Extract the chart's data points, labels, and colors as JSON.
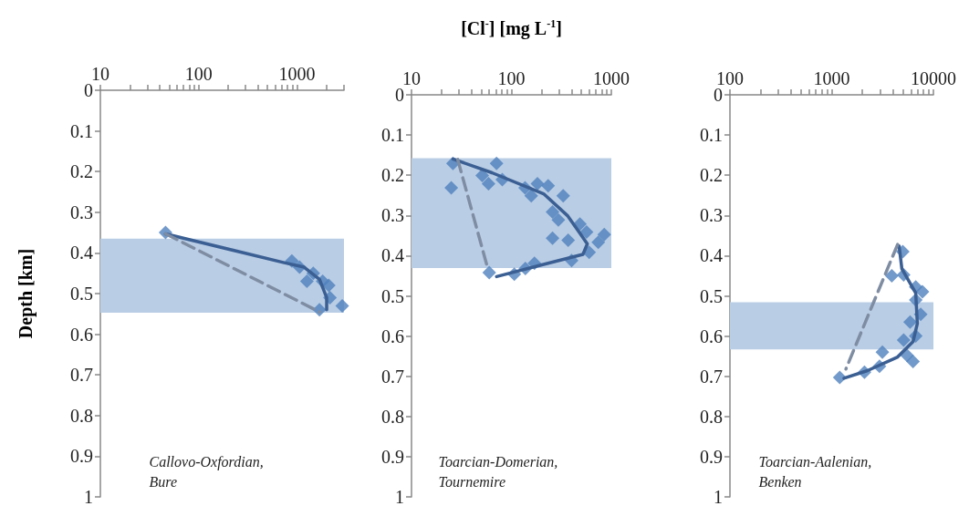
{
  "chart_data": [
    {
      "type": "scatter",
      "ylabel": "Depth [km]",
      "annotations": [
        "Callovo-Oxfordian, Bure"
      ],
      "log": "x",
      "xlim": [
        10,
        3000
      ],
      "xticks": [
        10,
        {
          "value": 20,
          "label": null
        },
        {
          "value": 30,
          "label": null
        },
        {
          "value": 40,
          "label": null
        },
        {
          "value": 50,
          "label": null
        },
        {
          "value": 60,
          "label": null
        },
        {
          "value": 70,
          "label": null
        },
        {
          "value": 80,
          "label": null
        },
        {
          "value": 90,
          "label": null
        },
        100,
        {
          "value": 200,
          "label": null
        },
        {
          "value": 300,
          "label": null
        },
        {
          "value": 400,
          "label": null
        },
        {
          "value": 500,
          "label": null
        },
        {
          "value": 600,
          "label": null
        },
        {
          "value": 700,
          "label": null
        },
        {
          "value": 800,
          "label": null
        },
        {
          "value": 900,
          "label": null
        },
        1000,
        {
          "value": 2000,
          "label": null
        },
        {
          "value": 3000,
          "label": null
        }
      ],
      "ylim": [
        1,
        0
      ],
      "yticks": [
        0,
        0.1,
        0.2,
        0.3,
        0.4,
        0.5,
        0.6,
        0.7,
        0.8,
        0.9,
        1
      ],
      "bands": [
        {
          "axis": "y",
          "from": 0.365,
          "to": 0.547,
          "color": "#b9cde5"
        }
      ],
      "series": [
        {
          "type": "scatter",
          "marker": "diamond",
          "color": "#4f81bd",
          "x": [
            46,
            885,
            1060,
            1460,
            1260,
            1820,
            2100,
            2160,
            2880,
            1690
          ],
          "values": [
            0.35,
            0.42,
            0.435,
            0.45,
            0.47,
            0.47,
            0.48,
            0.51,
            0.53,
            0.54
          ]
        },
        {
          "type": "line",
          "marker": "none",
          "line_style": "solid",
          "color": "#3b5f93",
          "x": [
            46,
            740,
            1180,
            1690,
            2000,
            2000
          ],
          "values": [
            0.353,
            0.424,
            0.435,
            0.465,
            0.51,
            0.54
          ]
        },
        {
          "type": "line",
          "marker": "none",
          "line_style": "dashed",
          "color": "#7f8da3",
          "x": [
            46,
            1690
          ],
          "values": [
            0.353,
            0.545
          ]
        }
      ]
    },
    {
      "type": "scatter",
      "xlabel": "[Cl$^{-}$] [mg L$^{-1}$]",
      "annotations": [
        "Toarcian-Domerian, Tournemire"
      ],
      "log": "x",
      "xlim": [
        10,
        1000
      ],
      "xticks": [
        10,
        {
          "value": 20,
          "label": null
        },
        {
          "value": 30,
          "label": null
        },
        {
          "value": 40,
          "label": null
        },
        {
          "value": 50,
          "label": null
        },
        {
          "value": 60,
          "label": null
        },
        {
          "value": 70,
          "label": null
        },
        {
          "value": 80,
          "label": null
        },
        {
          "value": 90,
          "label": null
        },
        100,
        {
          "value": 200,
          "label": null
        },
        {
          "value": 300,
          "label": null
        },
        {
          "value": 400,
          "label": null
        },
        {
          "value": 500,
          "label": null
        },
        {
          "value": 600,
          "label": null
        },
        {
          "value": 700,
          "label": null
        },
        {
          "value": 800,
          "label": null
        },
        {
          "value": 900,
          "label": null
        },
        1000
      ],
      "ylim": [
        1,
        0
      ],
      "yticks": [
        0,
        0.1,
        0.2,
        0.3,
        0.4,
        0.5,
        0.6,
        0.7,
        0.8,
        0.9,
        1
      ],
      "bands": [
        {
          "axis": "y",
          "from": 0.157,
          "to": 0.429,
          "color": "#b9cde5"
        }
      ],
      "series": [
        {
          "type": "scatter",
          "marker": "diamond",
          "color": "#4f81bd",
          "x": [
            26,
            25,
            71,
            51,
            59,
            81,
            137,
            182,
            233,
            158,
            330,
            258,
            295,
            485,
            258,
            370,
            565,
            850,
            740,
            600,
            400,
            170,
            138,
            107,
            60
          ],
          "values": [
            0.17,
            0.23,
            0.17,
            0.2,
            0.22,
            0.21,
            0.23,
            0.22,
            0.225,
            0.25,
            0.25,
            0.29,
            0.31,
            0.32,
            0.355,
            0.36,
            0.34,
            0.346,
            0.365,
            0.39,
            0.41,
            0.417,
            0.43,
            0.444,
            0.44
          ]
        },
        {
          "type": "line",
          "marker": "none",
          "line_style": "solid",
          "color": "#3b5f93",
          "x": [
            26,
            64,
            210,
            367,
            575,
            520,
            210,
            71
          ],
          "values": [
            0.159,
            0.193,
            0.245,
            0.3,
            0.369,
            0.395,
            0.42,
            0.45
          ]
        },
        {
          "type": "line",
          "marker": "none",
          "line_style": "dashed",
          "color": "#7f8da3",
          "x": [
            29,
            58
          ],
          "values": [
            0.16,
            0.43
          ]
        }
      ]
    },
    {
      "type": "scatter",
      "annotations": [
        "Toarcian-Aalenian, Benken"
      ],
      "log": "x",
      "xlim": [
        100,
        10000
      ],
      "xticks": [
        100,
        {
          "value": 200,
          "label": null
        },
        {
          "value": 300,
          "label": null
        },
        {
          "value": 400,
          "label": null
        },
        {
          "value": 500,
          "label": null
        },
        {
          "value": 600,
          "label": null
        },
        {
          "value": 700,
          "label": null
        },
        {
          "value": 800,
          "label": null
        },
        {
          "value": 900,
          "label": null
        },
        1000,
        {
          "value": 2000,
          "label": null
        },
        {
          "value": 3000,
          "label": null
        },
        {
          "value": 4000,
          "label": null
        },
        {
          "value": 5000,
          "label": null
        },
        {
          "value": 6000,
          "label": null
        },
        {
          "value": 7000,
          "label": null
        },
        {
          "value": 8000,
          "label": null
        },
        {
          "value": 9000,
          "label": null
        },
        10000
      ],
      "ylim": [
        1,
        0
      ],
      "yticks": [
        0,
        0.1,
        0.2,
        0.3,
        0.4,
        0.5,
        0.6,
        0.7,
        0.8,
        0.9,
        1
      ],
      "bands": [
        {
          "axis": "y",
          "from": 0.516,
          "to": 0.633,
          "color": "#b9cde5"
        }
      ],
      "series": [
        {
          "type": "scatter",
          "marker": "diamond",
          "color": "#4f81bd",
          "x": [
            5000,
            3900,
            5100,
            6700,
            7800,
            6700,
            7500,
            5900,
            6700,
            5100,
            5500,
            6300,
            3150,
            2950,
            2100,
            1200
          ],
          "values": [
            0.39,
            0.45,
            0.448,
            0.478,
            0.49,
            0.51,
            0.546,
            0.565,
            0.6,
            0.61,
            0.648,
            0.663,
            0.64,
            0.675,
            0.69,
            0.703
          ]
        },
        {
          "type": "line",
          "marker": "none",
          "line_style": "solid",
          "color": "#3b5f93",
          "x": [
            4600,
            4900,
            6700,
            6950,
            6300,
            4450,
            2250,
            1320
          ],
          "values": [
            0.376,
            0.433,
            0.493,
            0.569,
            0.614,
            0.652,
            0.686,
            0.705
          ]
        },
        {
          "type": "line",
          "marker": "none",
          "line_style": "dashed",
          "color": "#7f8da3",
          "x": [
            4450,
            1380
          ],
          "values": [
            0.372,
            0.682
          ]
        }
      ]
    }
  ]
}
